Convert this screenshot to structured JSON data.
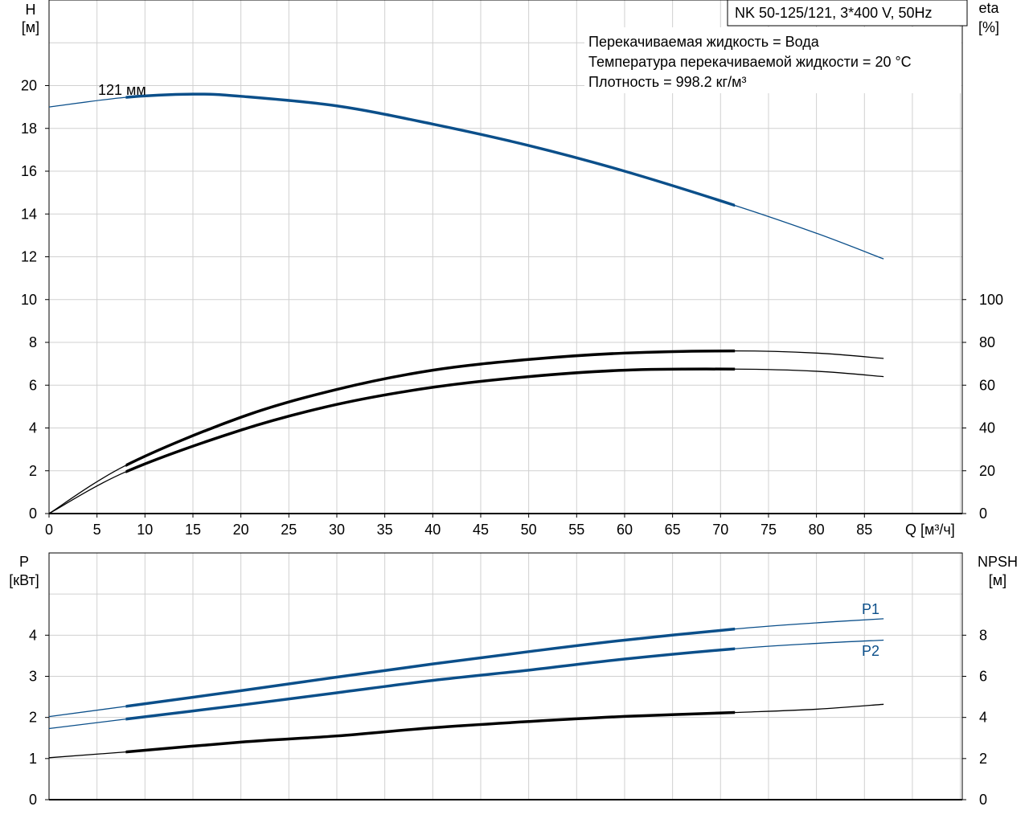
{
  "chart_data": [
    {
      "type": "line",
      "title": "NK 50-125/121, 3*400 V, 50Hz",
      "info": [
        "Перекачиваемая жидкость = Вода",
        "Температура перекачиваемой жидкости = 20 °C",
        "Плотность = 998.2 кг/м³"
      ],
      "xlabel": "Q [м³/ч]",
      "ylabel": [
        "H",
        "[м]"
      ],
      "ylabel_right": [
        "eta",
        "[%]"
      ],
      "xlim": [
        0,
        95.2
      ],
      "ylim": [
        0,
        24
      ],
      "ylim_right": [
        0,
        240
      ],
      "xticks": [
        "0",
        "5",
        "10",
        "15",
        "20",
        "25",
        "30",
        "35",
        "40",
        "45",
        "50",
        "55",
        "60",
        "65",
        "70",
        "75",
        "80",
        "85"
      ],
      "yticks": [
        "0",
        "2",
        "4",
        "6",
        "8",
        "10",
        "12",
        "14",
        "16",
        "18",
        "20"
      ],
      "yticks_right": [
        "0",
        "20",
        "40",
        "60",
        "80",
        "100"
      ],
      "curve_label": "121 мм",
      "duty_range": [
        8,
        71.5
      ],
      "series": [
        {
          "name": "H",
          "axis": "left",
          "color": "#0b4f8a",
          "x": [
            0,
            8,
            15,
            20,
            30,
            40,
            50,
            60,
            71.5,
            80,
            87
          ],
          "y": [
            19.0,
            19.45,
            19.6,
            19.5,
            19.05,
            18.2,
            17.2,
            16.0,
            14.4,
            13.1,
            11.9
          ]
        },
        {
          "name": "eta pump",
          "axis": "right",
          "color": "#000000",
          "x": [
            0,
            8,
            20,
            30,
            40,
            50,
            60,
            71.5,
            80,
            87
          ],
          "y": [
            0,
            22.5,
            45,
            58,
            67,
            72,
            75,
            76,
            75,
            72.5
          ]
        },
        {
          "name": "eta total",
          "axis": "right",
          "color": "#000000",
          "x": [
            0,
            8,
            20,
            30,
            40,
            50,
            60,
            71.5,
            80,
            87
          ],
          "y": [
            0,
            19.5,
            39,
            51,
            59,
            64,
            67,
            67.5,
            66.5,
            64
          ]
        }
      ]
    },
    {
      "type": "line",
      "xlim": [
        0,
        95.2
      ],
      "ylabel": [
        "P",
        "[кВт]"
      ],
      "ylabel_right": [
        "NPSH",
        "[м]"
      ],
      "ylim": [
        0,
        6
      ],
      "ylim_right": [
        0,
        12
      ],
      "yticks": [
        "0",
        "1",
        "2",
        "3",
        "4"
      ],
      "yticks_right": [
        "0",
        "2",
        "4",
        "6",
        "8"
      ],
      "duty_range": [
        8,
        71.5
      ],
      "series": [
        {
          "name": "P1",
          "axis": "left",
          "color": "#0b4f8a",
          "x": [
            0,
            8,
            20,
            30,
            40,
            50,
            60,
            71.5,
            80,
            87
          ],
          "y": [
            2.02,
            2.27,
            2.65,
            2.98,
            3.3,
            3.6,
            3.88,
            4.15,
            4.3,
            4.4
          ]
        },
        {
          "name": "P2",
          "axis": "left",
          "color": "#0b4f8a",
          "x": [
            0,
            8,
            20,
            30,
            40,
            50,
            60,
            71.5,
            80,
            87
          ],
          "y": [
            1.73,
            1.96,
            2.3,
            2.6,
            2.9,
            3.15,
            3.42,
            3.67,
            3.8,
            3.88
          ]
        },
        {
          "name": "NPSH",
          "axis": "right",
          "color": "#000000",
          "x": [
            0,
            8,
            20,
            30,
            40,
            50,
            60,
            71.5,
            80,
            87
          ],
          "y": [
            2.04,
            2.32,
            2.8,
            3.1,
            3.5,
            3.8,
            4.05,
            4.24,
            4.4,
            4.64
          ]
        }
      ]
    }
  ]
}
